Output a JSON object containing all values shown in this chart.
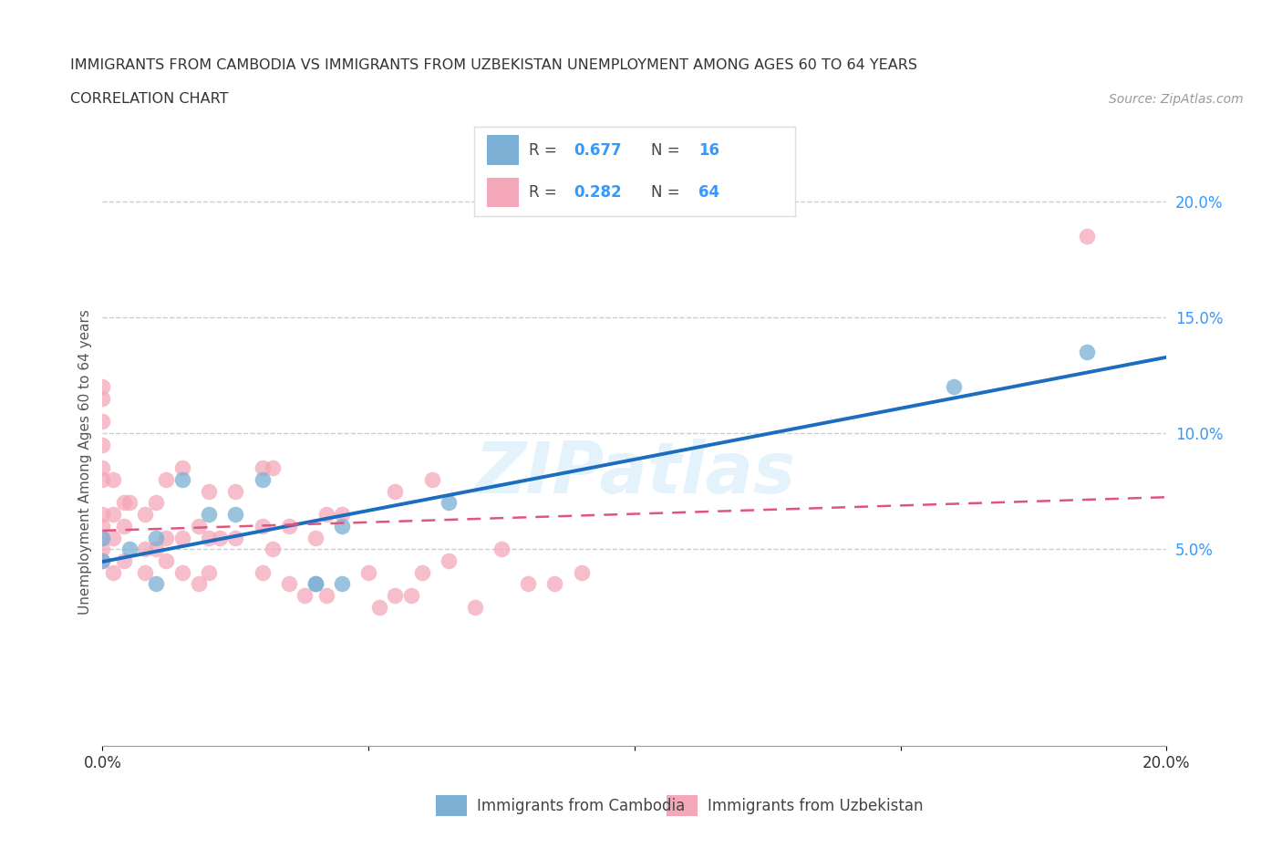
{
  "title_line1": "IMMIGRANTS FROM CAMBODIA VS IMMIGRANTS FROM UZBEKISTAN UNEMPLOYMENT AMONG AGES 60 TO 64 YEARS",
  "title_line2": "CORRELATION CHART",
  "source_text": "Source: ZipAtlas.com",
  "ylabel": "Unemployment Among Ages 60 to 64 years",
  "xmin": 0.0,
  "xmax": 0.2,
  "ymin": -0.035,
  "ymax": 0.21,
  "ytick_right": [
    0.05,
    0.1,
    0.15,
    0.2
  ],
  "ytick_right_labels": [
    "5.0%",
    "10.0%",
    "15.0%",
    "20.0%"
  ],
  "xtick_vals": [
    0.0,
    0.05,
    0.1,
    0.15,
    0.2
  ],
  "xtick_labels": [
    "0.0%",
    "",
    "",
    "",
    "20.0%"
  ],
  "grid_color": "#cccccc",
  "cambodia_color": "#7bafd4",
  "uzbekistan_color": "#f4a7b9",
  "cambodia_R": 0.677,
  "cambodia_N": 16,
  "uzbekistan_R": 0.282,
  "uzbekistan_N": 64,
  "legend_label_cambodia": "Immigrants from Cambodia",
  "legend_label_uzbekistan": "Immigrants from Uzbekistan",
  "right_axis_color": "#3399ff",
  "cambodia_scatter_x": [
    0.0,
    0.0,
    0.005,
    0.01,
    0.01,
    0.015,
    0.02,
    0.025,
    0.03,
    0.04,
    0.04,
    0.045,
    0.045,
    0.065,
    0.16,
    0.185
  ],
  "cambodia_scatter_y": [
    0.045,
    0.055,
    0.05,
    0.055,
    0.035,
    0.08,
    0.065,
    0.065,
    0.08,
    0.035,
    0.035,
    0.06,
    0.035,
    0.07,
    0.12,
    0.135
  ],
  "uzbekistan_scatter_x": [
    0.0,
    0.0,
    0.0,
    0.0,
    0.0,
    0.0,
    0.0,
    0.0,
    0.0,
    0.0,
    0.0,
    0.002,
    0.002,
    0.002,
    0.002,
    0.004,
    0.004,
    0.004,
    0.005,
    0.008,
    0.008,
    0.008,
    0.01,
    0.01,
    0.012,
    0.012,
    0.012,
    0.015,
    0.015,
    0.015,
    0.018,
    0.018,
    0.02,
    0.02,
    0.02,
    0.022,
    0.025,
    0.025,
    0.03,
    0.03,
    0.03,
    0.032,
    0.032,
    0.035,
    0.035,
    0.038,
    0.04,
    0.042,
    0.042,
    0.045,
    0.05,
    0.052,
    0.055,
    0.055,
    0.058,
    0.06,
    0.062,
    0.065,
    0.07,
    0.075,
    0.08,
    0.085,
    0.09,
    0.185
  ],
  "uzbekistan_scatter_y": [
    0.045,
    0.05,
    0.055,
    0.06,
    0.065,
    0.08,
    0.085,
    0.095,
    0.105,
    0.115,
    0.12,
    0.04,
    0.055,
    0.065,
    0.08,
    0.045,
    0.06,
    0.07,
    0.07,
    0.04,
    0.05,
    0.065,
    0.05,
    0.07,
    0.045,
    0.055,
    0.08,
    0.04,
    0.055,
    0.085,
    0.035,
    0.06,
    0.04,
    0.055,
    0.075,
    0.055,
    0.055,
    0.075,
    0.04,
    0.06,
    0.085,
    0.05,
    0.085,
    0.035,
    0.06,
    0.03,
    0.055,
    0.03,
    0.065,
    0.065,
    0.04,
    0.025,
    0.03,
    0.075,
    0.03,
    0.04,
    0.08,
    0.045,
    0.025,
    0.05,
    0.035,
    0.035,
    0.04,
    0.185
  ]
}
